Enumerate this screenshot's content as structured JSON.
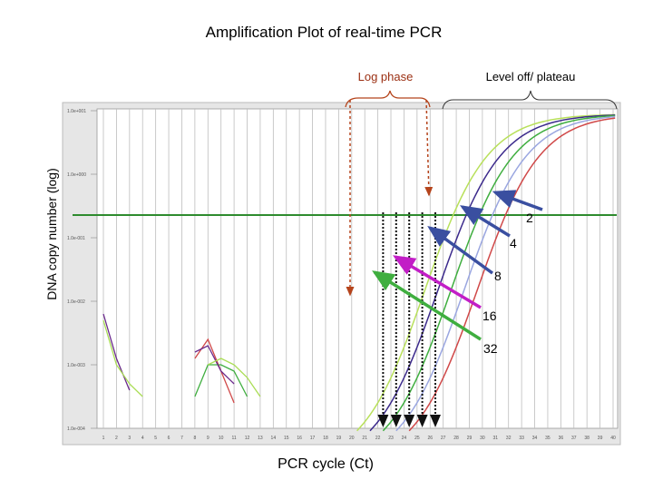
{
  "page": {
    "title": "Amplification Plot of real-time PCR"
  },
  "annotations": {
    "log_phase": "Log phase",
    "plateau": "Level off/ plateau",
    "fold_labels": [
      "2",
      "4",
      "8",
      "16",
      "32"
    ]
  },
  "colors": {
    "threshold": "#2e8b2e",
    "log_phase_marker": "#b5441c",
    "arrow_2": "#3a4fa0",
    "arrow_4": "#3a4fa0",
    "arrow_8": "#c21ec6",
    "arrow_16": "#3fae3f",
    "plot_bg": "#ececec"
  },
  "chart_data": {
    "type": "line",
    "title": "Amplification Plot of real-time PCR",
    "xlabel": "PCR cycle (Ct)",
    "ylabel": "DNA copy number (log)",
    "x_ticks": [
      1,
      2,
      3,
      4,
      5,
      6,
      7,
      8,
      9,
      10,
      11,
      12,
      13,
      14,
      15,
      16,
      17,
      18,
      19,
      20,
      21,
      22,
      23,
      24,
      25,
      26,
      27,
      28,
      29,
      30,
      31,
      32,
      33,
      34,
      35,
      36,
      37,
      38,
      39,
      40
    ],
    "y_ticks": [
      "1.0e+001",
      "1.0e+000",
      "1.0e-001",
      "1.0e-002",
      "1.0e-003",
      "1.0e-004"
    ],
    "xlim": [
      0.5,
      40.5
    ],
    "ylim_log10": [
      -4,
      1
    ],
    "grid": "vertical",
    "threshold_log10": -0.6,
    "ct_values": [
      22.4,
      23.4,
      24.4,
      25.4,
      26.4
    ],
    "series": [
      {
        "color": "#b8e05a",
        "ct": 22.4
      },
      {
        "color": "#3c2a8c",
        "ct": 23.4
      },
      {
        "color": "#3fae3f",
        "ct": 24.4
      },
      {
        "color": "#9aa6e0",
        "ct": 25.4
      },
      {
        "color": "#d04848",
        "ct": 26.4
      }
    ],
    "noise_series": [
      {
        "color": "#6a2a8c",
        "x": [
          1,
          2,
          3
        ],
        "y": [
          -2.2,
          -2.9,
          -3.4
        ]
      },
      {
        "color": "#aadd55",
        "x": [
          1,
          2,
          3,
          4
        ],
        "y": [
          -2.3,
          -3.0,
          -3.3,
          -3.5
        ]
      },
      {
        "color": "#d04848",
        "x": [
          8,
          9,
          10,
          11
        ],
        "y": [
          -2.9,
          -2.6,
          -3.1,
          -3.6
        ]
      },
      {
        "color": "#3fae3f",
        "x": [
          8,
          9,
          10,
          11,
          12
        ],
        "y": [
          -3.5,
          -3.0,
          -3.0,
          -3.1,
          -3.5
        ]
      },
      {
        "color": "#6a2a8c",
        "x": [
          8,
          9,
          10,
          11
        ],
        "y": [
          -2.8,
          -2.7,
          -3.1,
          -3.3
        ]
      },
      {
        "color": "#aadd55",
        "x": [
          9,
          10,
          11,
          12,
          13
        ],
        "y": [
          -3.0,
          -2.9,
          -3.0,
          -3.2,
          -3.5
        ]
      }
    ]
  }
}
